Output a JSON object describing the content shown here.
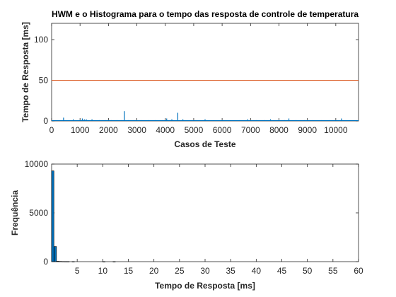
{
  "chart_data": [
    {
      "type": "line",
      "title": "HWM e o Histograma para o tempo das resposta de controle de temperatura",
      "xlabel": "Casos de Teste",
      "ylabel": "Tempo de Resposta [ms]",
      "xlim": [
        0,
        10800
      ],
      "ylim": [
        0,
        120
      ],
      "xticks": [
        "0",
        "1000",
        "2000",
        "3000",
        "4000",
        "5000",
        "6000",
        "7000",
        "8000",
        "9000",
        "10000"
      ],
      "yticks": [
        "0",
        "50",
        "100"
      ],
      "colors": {
        "series": "#0072BD",
        "hwm": "#D95319"
      },
      "series": [
        {
          "type": "spikes",
          "x": [
            120,
            420,
            760,
            980,
            1080,
            1150,
            1220,
            1300,
            1420,
            1520,
            1680,
            1900,
            2100,
            2300,
            2450,
            2560,
            2700,
            2900,
            3150,
            3400,
            3650,
            3900,
            4050,
            4230,
            4440,
            4620,
            4900,
            5200,
            5400,
            5700,
            6000,
            6300,
            6600,
            6900,
            7200,
            7500,
            7700,
            8000,
            8200,
            8350,
            8600,
            8900,
            9200,
            9500,
            9800,
            10000,
            10200,
            10500
          ],
          "values": [
            1,
            4,
            2,
            1,
            3,
            2,
            2,
            1,
            2,
            1,
            1,
            1,
            1,
            1,
            1,
            12,
            1,
            1,
            1,
            1,
            1,
            1,
            3,
            2,
            10,
            2,
            1,
            1,
            2,
            1,
            1,
            1,
            1,
            2,
            1,
            1,
            2,
            1,
            1,
            3,
            1,
            1,
            1,
            1,
            1,
            1,
            3,
            1
          ]
        },
        {
          "type": "hline",
          "values": [
            50
          ]
        }
      ]
    },
    {
      "type": "bar",
      "title": "",
      "xlabel": "Tempo de Resposta [ms]",
      "ylabel": "Frequência",
      "xlim": [
        0,
        60
      ],
      "ylim": [
        0,
        10000
      ],
      "xticks": [
        "5",
        "10",
        "15",
        "20",
        "25",
        "30",
        "35",
        "40",
        "45",
        "50",
        "55",
        "60"
      ],
      "yticks": [
        "0",
        "5000",
        "10000"
      ],
      "colors": {
        "bars": "#0072BD"
      },
      "bins": [
        0,
        0.5,
        1.0,
        1.5,
        2.0,
        2.5,
        3.0,
        4.0,
        10.0,
        12.0
      ],
      "values": [
        9300,
        1550,
        40,
        25,
        15,
        10,
        8,
        5,
        3,
        2
      ],
      "bin_width": 0.45
    }
  ]
}
